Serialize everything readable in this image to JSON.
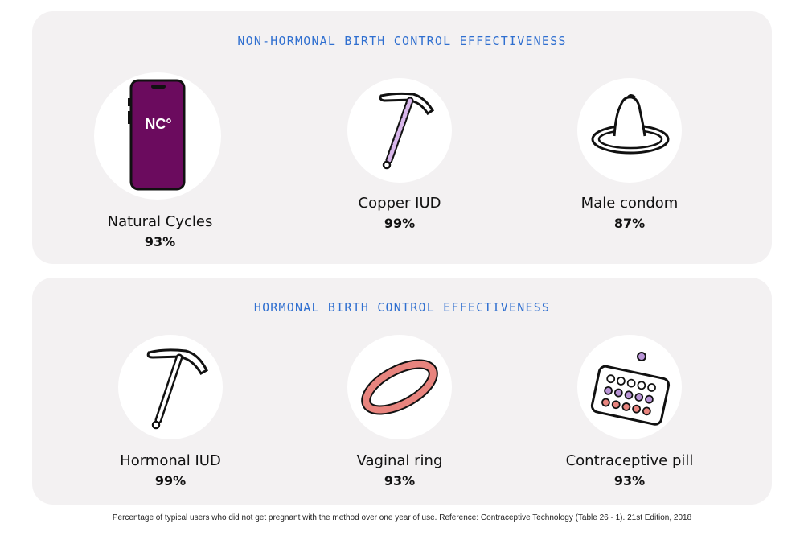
{
  "sections": [
    {
      "title": "NON-HORMONAL BIRTH CONTROL EFFECTIVENESS",
      "items": [
        {
          "label": "Natural Cycles",
          "percent": "93%",
          "icon": "phone-icon",
          "app_badge": "NC°"
        },
        {
          "label": "Copper IUD",
          "percent": "99%",
          "icon": "copper-iud-icon"
        },
        {
          "label": "Male condom",
          "percent": "87%",
          "icon": "condom-icon"
        }
      ]
    },
    {
      "title": "HORMONAL BIRTH CONTROL EFFECTIVENESS",
      "items": [
        {
          "label": "Hormonal IUD",
          "percent": "99%",
          "icon": "hormonal-iud-icon"
        },
        {
          "label": "Vaginal ring",
          "percent": "93%",
          "icon": "vaginal-ring-icon"
        },
        {
          "label": "Contraceptive pill",
          "percent": "93%",
          "icon": "pill-pack-icon"
        }
      ]
    }
  ],
  "footnote": "Percentage of typical users who did not get pregnant with the method over one year of use. Reference: Contraceptive Technology (Table 26 - 1). 21st Edition, 2018",
  "colors": {
    "panel_bg": "#f3f1f2",
    "title_blue": "#2f6fd0",
    "phone_purple": "#6b0b5e",
    "iud_pink": "#d8b6ea",
    "ring_coral": "#e8847e",
    "pill_purple": "#b994d6",
    "pill_coral": "#e8847e"
  }
}
